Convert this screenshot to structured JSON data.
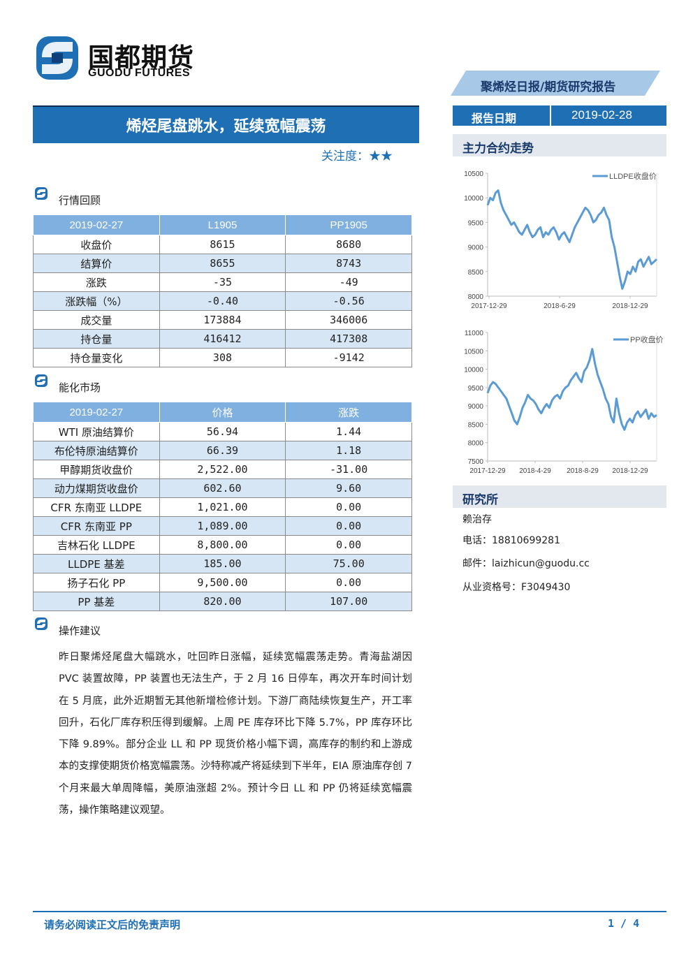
{
  "brand": {
    "cn": "国都期货",
    "en": "GUODU FUTURES"
  },
  "report_type": "聚烯烃日报/期货研究报告",
  "report_date": {
    "label": "报告日期",
    "value": "2019-02-28"
  },
  "title": "烯烃尾盘跳水，延续宽幅震荡",
  "attention": {
    "label": "关注度：",
    "stars": "★★",
    "level": 2
  },
  "market_review": {
    "heading": "行情回顾",
    "headers": [
      "2019-02-27",
      "L1905",
      "PP1905"
    ],
    "rows": [
      {
        "label": "收盘价",
        "a": "8615",
        "b": "8680"
      },
      {
        "label": "结算价",
        "a": "8655",
        "b": "8743"
      },
      {
        "label": "涨跌",
        "a": "-35",
        "b": "-49"
      },
      {
        "label": "涨跌幅（%）",
        "a": "-0.40",
        "b": "-0.56"
      },
      {
        "label": "成交量",
        "a": "173884",
        "b": "346006"
      },
      {
        "label": "持仓量",
        "a": "416412",
        "b": "417308"
      },
      {
        "label": "持仓量变化",
        "a": "308",
        "b": "-9142"
      }
    ]
  },
  "energy_market": {
    "heading": "能化市场",
    "headers": [
      "2019-02-27",
      "价格",
      "涨跌"
    ],
    "rows": [
      {
        "label": "WTI 原油结算价",
        "a": "56.94",
        "b": "1.44"
      },
      {
        "label": "布伦特原油结算价",
        "a": "66.39",
        "b": "1.18"
      },
      {
        "label": "甲醇期货收盘价",
        "a": "2,522.00",
        "b": "-31.00"
      },
      {
        "label": "动力煤期货收盘价",
        "a": "602.60",
        "b": "9.60"
      },
      {
        "label": "CFR 东南亚 LLDPE",
        "a": "1,021.00",
        "b": "0.00"
      },
      {
        "label": "CFR 东南亚 PP",
        "a": "1,089.00",
        "b": "0.00"
      },
      {
        "label": "吉林石化 LLDPE",
        "a": "8,800.00",
        "b": "0.00"
      },
      {
        "label": "LLDPE 基差",
        "a": "185.00",
        "b": "75.00"
      },
      {
        "label": "扬子石化 PP",
        "a": "9,500.00",
        "b": "0.00"
      },
      {
        "label": "PP 基差",
        "a": "820.00",
        "b": "107.00"
      }
    ]
  },
  "advice": {
    "heading": "操作建议",
    "text": "昨日聚烯烃尾盘大幅跳水，吐回昨日涨幅，延续宽幅震荡走势。青海盐湖因 PVC 装置故障，PP 装置也无法生产，于 2 月 16 日停车，再次开车时间计划在 5 月底，此外近期暂无其他新增检修计划。下游厂商陆续恢复生产，开工率回升，石化厂库存积压得到缓解。上周 PE 库存环比下降 5.7%，PP 库存环比下降 9.89%。部分企业 LL 和 PP 现货价格小幅下调，高库存的制约和上游成本的支撑使期货价格宽幅震荡。沙特称减产将延续到下半年，EIA 原油库存创 7 个月来最大单周降幅，美原油涨超 2%。预计今日 LL 和 PP 仍将延续宽幅震荡，操作策略建议观望。"
  },
  "trend": {
    "heading": "主力合约走势"
  },
  "research": {
    "heading": "研究所",
    "name": "赖治存",
    "phone": "电话：18810699281",
    "email": "邮件：laizhicun@guodu.cc",
    "license": "从业资格号：F3049430"
  },
  "footer": {
    "disclaimer": "请务必阅读正文后的免责声明",
    "page": "1 / 4"
  },
  "colors": {
    "primary": "#1f6fb5",
    "header_light": "#7fb0e0",
    "row_alt": "#d6e6f5",
    "line": "#5b9bd5"
  },
  "chart_data": [
    {
      "type": "line",
      "series": [
        {
          "name": "LLDPE收盘价",
          "values": [
            9850,
            10000,
            9950,
            10100,
            10150,
            9900,
            9750,
            9650,
            9550,
            9450,
            9500,
            9400,
            9300,
            9250,
            9350,
            9450,
            9300,
            9200,
            9250,
            9350,
            9400,
            9200,
            9300,
            9250,
            9350,
            9400,
            9300,
            9150,
            9250,
            9300,
            9200,
            9100,
            9250,
            9400,
            9500,
            9600,
            9700,
            9800,
            9750,
            9650,
            9500,
            9550,
            9650,
            9700,
            9800,
            9650,
            9550,
            9200,
            9000,
            8700,
            8400,
            8150,
            8300,
            8500,
            8450,
            8600,
            8500,
            8700,
            8750,
            8600,
            8700,
            8800,
            8650,
            8700,
            8750
          ]
        }
      ],
      "x_ticks": [
        "2017-12-29",
        "2018-6-29",
        "2018-12-29"
      ],
      "y_ticks": [
        8000,
        8500,
        9000,
        9500,
        10000,
        10500
      ],
      "ylim": [
        8000,
        10500
      ]
    },
    {
      "type": "line",
      "series": [
        {
          "name": "PP收盘价",
          "values": [
            9350,
            9550,
            9650,
            9600,
            9500,
            9400,
            9300,
            9200,
            9000,
            8800,
            8600,
            8500,
            8700,
            8950,
            9100,
            9300,
            9200,
            9150,
            9050,
            8900,
            8800,
            8950,
            9050,
            8950,
            9150,
            9250,
            9300,
            9200,
            9400,
            9500,
            9550,
            9700,
            9800,
            9900,
            9750,
            9650,
            9950,
            10050,
            10250,
            10550,
            10150,
            9850,
            9650,
            9450,
            9200,
            9050,
            8700,
            8550,
            9200,
            8800,
            8500,
            8350,
            8550,
            8650,
            8550,
            8750,
            8850,
            8700,
            8800,
            8900,
            8650,
            8800,
            8700,
            8750
          ]
        }
      ],
      "x_ticks": [
        "2017-12-29",
        "2018-4-29",
        "2018-8-29",
        "2018-12-29"
      ],
      "y_ticks": [
        7500,
        8000,
        8500,
        9000,
        9500,
        10000,
        10500,
        11000
      ],
      "ylim": [
        7500,
        11000
      ]
    }
  ]
}
